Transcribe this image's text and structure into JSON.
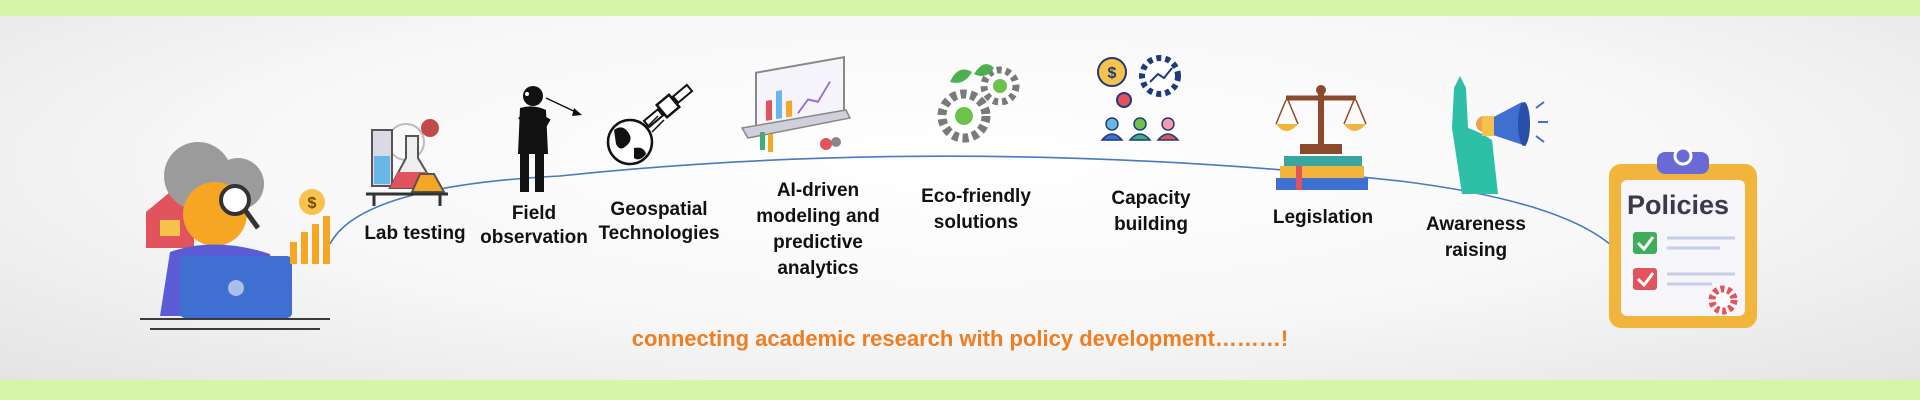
{
  "steps": [
    {
      "label": "Lab testing",
      "icon": "lab-flasks-icon"
    },
    {
      "label": "Field\nobservation",
      "icon": "observer-person-icon"
    },
    {
      "label": "Geospatial\nTechnologies",
      "icon": "satellite-globe-icon"
    },
    {
      "label": "AI-driven\nmodeling and\npredictive\nanalytics",
      "icon": "laptop-analytics-icon"
    },
    {
      "label": "Eco-friendly\nsolutions",
      "icon": "eco-gears-icon"
    },
    {
      "label": "Capacity\nbuilding",
      "icon": "team-growth-icon"
    },
    {
      "label": "Legislation",
      "icon": "scales-books-icon"
    },
    {
      "label": "Awareness\nraising",
      "icon": "megaphone-icon"
    }
  ],
  "researcher_icon": "researcher-magnifier-icon",
  "policies": {
    "title": "Policies",
    "icon": "clipboard-checklist-icon"
  },
  "tagline": "connecting academic research with policy development………!",
  "colors": {
    "tagline": "#ef7d22",
    "band": "#d6f5a8",
    "curve": "#4a78c2",
    "clipboard": "#f0b53a"
  }
}
